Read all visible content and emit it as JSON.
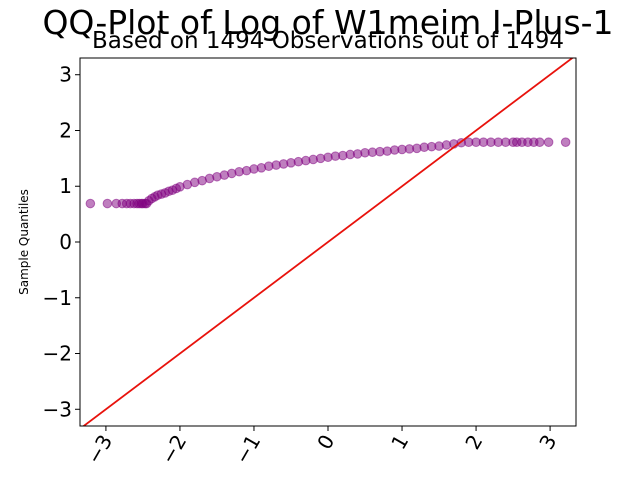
{
  "chart_data": {
    "type": "scatter",
    "title": "QQ-Plot of Log of W1meim I-Plus-1",
    "subtitle": "Based on 1494 Observations out of 1494",
    "xlabel": "",
    "ylabel": "Sample Quantiles",
    "xlim": [
      -3.35,
      3.35
    ],
    "ylim": [
      -3.3,
      3.3
    ],
    "xticks": [
      -3,
      -2,
      -1,
      0,
      1,
      2,
      3
    ],
    "xtick_labels": [
      "−3",
      "−2",
      "−1",
      "0",
      "1",
      "2",
      "3"
    ],
    "yticks": [
      -3,
      -2,
      -1,
      0,
      1,
      2,
      3
    ],
    "ytick_labels": [
      "−3",
      "−2",
      "−1",
      "0",
      "1",
      "2",
      "3"
    ],
    "grid": false,
    "reference_line": {
      "slope": 1,
      "intercept": 0,
      "color": "#e8120c"
    },
    "point_color": "#800080",
    "series": [
      {
        "x": [
          -3.21,
          -2.98,
          -2.86,
          -2.78,
          -2.72,
          -2.67,
          -2.62,
          -2.58,
          -2.55,
          -2.52,
          -2.5,
          -2.47,
          -2.45,
          -2.42,
          -2.38,
          -2.34,
          -2.3,
          -2.25,
          -2.2,
          -2.15,
          -2.1,
          -2.05,
          -2.0,
          -1.9,
          -1.8,
          -1.7,
          -1.6,
          -1.5,
          -1.4,
          -1.3,
          -1.2,
          -1.1,
          -1.0,
          -0.9,
          -0.8,
          -0.7,
          -0.6,
          -0.5,
          -0.4,
          -0.3,
          -0.2,
          -0.1,
          0.0,
          0.1,
          0.2,
          0.3,
          0.4,
          0.5,
          0.6,
          0.7,
          0.8,
          0.9,
          1.0,
          1.1,
          1.2,
          1.3,
          1.4,
          1.5,
          1.6,
          1.7,
          1.8,
          1.9,
          2.0,
          2.1,
          2.2,
          2.3,
          2.4,
          2.5,
          2.55,
          2.62,
          2.7,
          2.78,
          2.86,
          2.98,
          3.21
        ],
        "y": [
          0.69,
          0.69,
          0.69,
          0.69,
          0.69,
          0.69,
          0.69,
          0.69,
          0.69,
          0.69,
          0.69,
          0.69,
          0.69,
          0.74,
          0.78,
          0.81,
          0.84,
          0.86,
          0.88,
          0.91,
          0.93,
          0.96,
          0.99,
          1.03,
          1.07,
          1.1,
          1.14,
          1.17,
          1.2,
          1.23,
          1.26,
          1.28,
          1.31,
          1.33,
          1.36,
          1.38,
          1.4,
          1.42,
          1.44,
          1.46,
          1.48,
          1.5,
          1.52,
          1.54,
          1.55,
          1.57,
          1.58,
          1.6,
          1.61,
          1.62,
          1.63,
          1.65,
          1.66,
          1.67,
          1.68,
          1.7,
          1.71,
          1.72,
          1.74,
          1.76,
          1.78,
          1.79,
          1.79,
          1.79,
          1.79,
          1.79,
          1.79,
          1.79,
          1.79,
          1.79,
          1.79,
          1.79,
          1.79,
          1.79,
          1.79
        ]
      }
    ]
  }
}
